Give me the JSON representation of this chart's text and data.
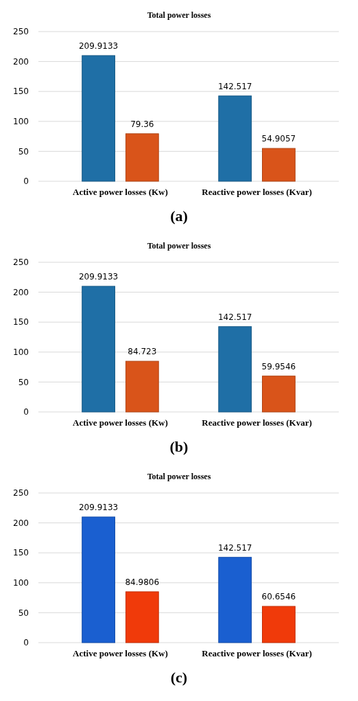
{
  "chart_data": [
    {
      "type": "bar",
      "title": "Total power losses",
      "categories": [
        "Active power losses (Kw)",
        "Reactive power losses (Kvar)"
      ],
      "series": [
        {
          "color": "#1f6fa6",
          "values": [
            209.9133,
            142.517
          ]
        },
        {
          "color": "#d9541a",
          "values": [
            79.36,
            54.9057
          ]
        }
      ],
      "ylim": [
        0,
        250
      ],
      "yticks": [
        0,
        50,
        100,
        150,
        200,
        250
      ],
      "grid": "y",
      "data_labels": true,
      "annotations": [
        "(a)"
      ]
    },
    {
      "type": "bar",
      "title": "Total power losses",
      "categories": [
        "Active power losses (Kw)",
        "Reactive power losses (Kvar)"
      ],
      "series": [
        {
          "color": "#1f6fa6",
          "values": [
            209.9133,
            142.517
          ]
        },
        {
          "color": "#d9541a",
          "values": [
            84.723,
            59.9546
          ]
        }
      ],
      "ylim": [
        0,
        250
      ],
      "yticks": [
        0,
        50,
        100,
        150,
        200,
        250
      ],
      "grid": "y",
      "data_labels": true,
      "annotations": [
        "(b)"
      ]
    },
    {
      "type": "bar",
      "title": "Total power losses",
      "categories": [
        "Active power losses (Kw)",
        "Reactive power losses (Kvar)"
      ],
      "series": [
        {
          "color": "#1a5fd0",
          "values": [
            209.9133,
            142.517
          ]
        },
        {
          "color": "#f03a0a",
          "values": [
            84.9806,
            60.6546
          ]
        }
      ],
      "ylim": [
        0,
        250
      ],
      "yticks": [
        0,
        50,
        100,
        150,
        200,
        250
      ],
      "grid": "y",
      "data_labels": true,
      "annotations": [
        "(c)"
      ]
    }
  ]
}
